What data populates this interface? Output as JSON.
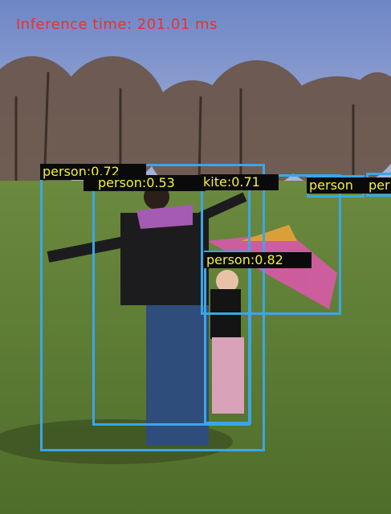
{
  "overlay": {
    "inference_text": "Inference time: 201.01 ms"
  },
  "detections": [
    {
      "class": "person",
      "label": "person:0.72",
      "score": 0.72
    },
    {
      "class": "person",
      "label": "person:0.53",
      "score": 0.53
    },
    {
      "class": "kite",
      "label": "kite:0.71",
      "score": 0.71
    },
    {
      "class": "person",
      "label": "person:0.82",
      "score": 0.82
    },
    {
      "class": "person",
      "label": "person",
      "score": null
    },
    {
      "class": "person",
      "label": "per",
      "score": null
    }
  ],
  "colors": {
    "box": "#3aa6e8",
    "label_text": "#f4f13a",
    "label_bg": "#0a0a0a",
    "inference_text": "#e8322e"
  }
}
